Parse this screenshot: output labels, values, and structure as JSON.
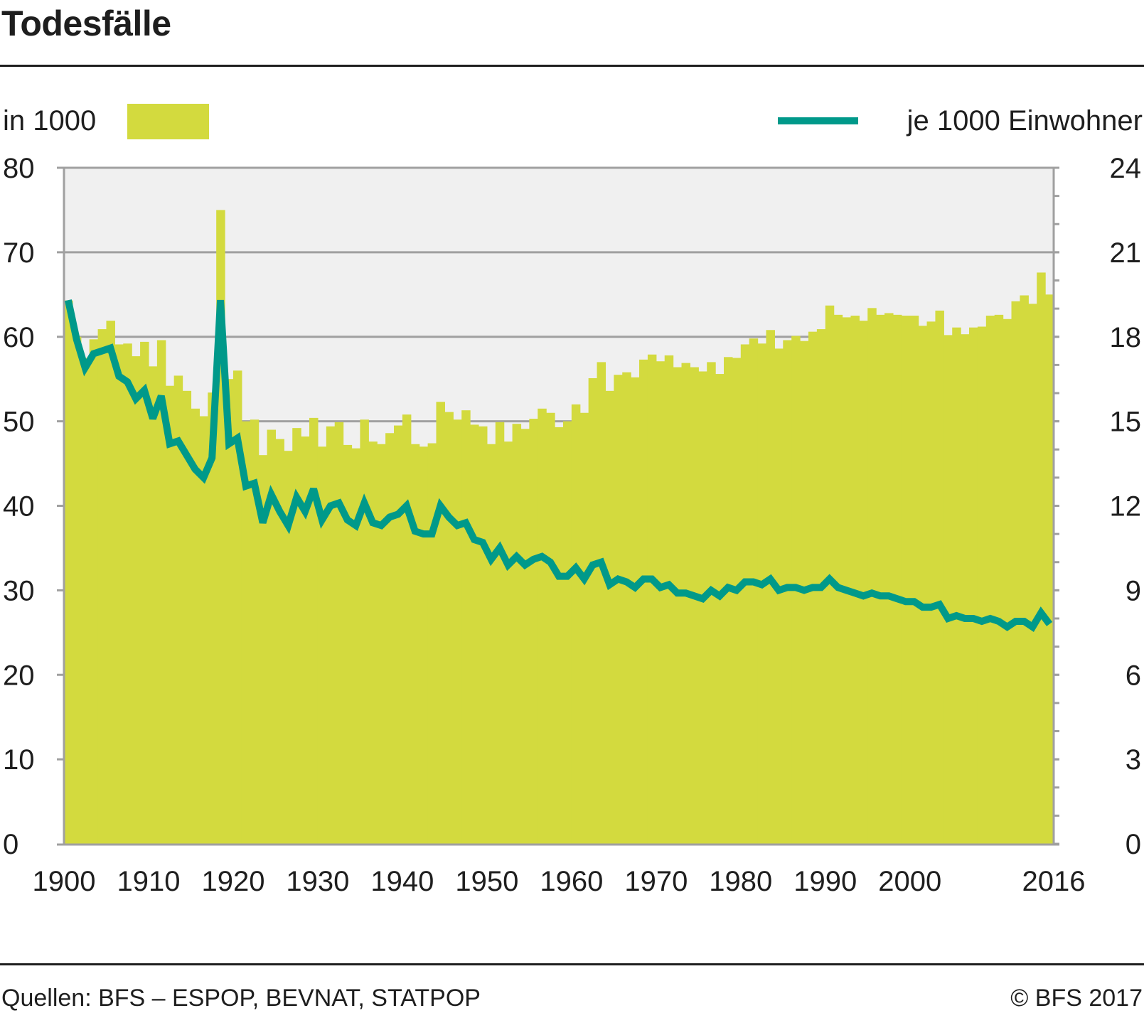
{
  "header": {
    "title": "Todesfälle"
  },
  "legend": {
    "left_label": "in 1000",
    "right_label": "je 1000 Einwohner"
  },
  "footer": {
    "source": "Quellen: BFS – ESPOP, BEVNAT, STATPOP",
    "copyright": "© BFS 2017"
  },
  "colors": {
    "bar": "#d3da3e",
    "line": "#00998a",
    "plot_bg": "#f0f0f0",
    "grid": "#a0a0a0",
    "text": "#1e1e1e"
  },
  "chart_data": {
    "type": "bar",
    "title": "Todesfälle",
    "xlabel": "",
    "x_tick_labels": [
      "1900",
      "1910",
      "1920",
      "1930",
      "1940",
      "1950",
      "1960",
      "1970",
      "1980",
      "1990",
      "2000",
      "2016"
    ],
    "x_ticks": [
      1900,
      1910,
      1920,
      1930,
      1940,
      1950,
      1960,
      1970,
      1980,
      1990,
      2000,
      2016
    ],
    "xlim": [
      1900,
      2016
    ],
    "y_left": {
      "label": "in 1000",
      "ylim": [
        0,
        80
      ],
      "ticks": [
        0,
        10,
        20,
        30,
        40,
        50,
        60,
        70,
        80
      ]
    },
    "y_right": {
      "label": "je 1000 Einwohner",
      "ylim": [
        0,
        24
      ],
      "ticks": [
        0,
        3,
        6,
        9,
        12,
        15,
        18,
        21,
        24
      ]
    },
    "grid": true,
    "legend": "top",
    "x": [
      1900,
      1901,
      1902,
      1903,
      1904,
      1905,
      1906,
      1907,
      1908,
      1909,
      1910,
      1911,
      1912,
      1913,
      1914,
      1915,
      1916,
      1917,
      1918,
      1919,
      1920,
      1921,
      1922,
      1923,
      1924,
      1925,
      1926,
      1927,
      1928,
      1929,
      1930,
      1931,
      1932,
      1933,
      1934,
      1935,
      1936,
      1937,
      1938,
      1939,
      1940,
      1941,
      1942,
      1943,
      1944,
      1945,
      1946,
      1947,
      1948,
      1949,
      1950,
      1951,
      1952,
      1953,
      1954,
      1955,
      1956,
      1957,
      1958,
      1959,
      1960,
      1961,
      1962,
      1963,
      1964,
      1965,
      1966,
      1967,
      1968,
      1969,
      1970,
      1971,
      1972,
      1973,
      1974,
      1975,
      1976,
      1977,
      1978,
      1979,
      1980,
      1981,
      1982,
      1983,
      1984,
      1985,
      1986,
      1987,
      1988,
      1989,
      1990,
      1991,
      1992,
      1993,
      1994,
      1995,
      1996,
      1997,
      1998,
      1999,
      2000,
      2001,
      2002,
      2003,
      2004,
      2005,
      2006,
      2007,
      2008,
      2009,
      2010,
      2011,
      2012,
      2013,
      2014,
      2015,
      2016
    ],
    "series": [
      {
        "name": "in 1000",
        "type": "bar",
        "axis": "left",
        "values": [
          64.3,
          60.0,
          57.5,
          59.7,
          60.9,
          61.9,
          59.1,
          59.2,
          57.7,
          59.4,
          56.5,
          59.6,
          54.2,
          55.4,
          53.6,
          51.5,
          50.6,
          53.4,
          75.0,
          55.0,
          56.0,
          50.0,
          50.2,
          46.0,
          49.0,
          47.9,
          46.5,
          49.2,
          48.2,
          50.4,
          47.0,
          49.4,
          49.9,
          47.2,
          46.8,
          50.2,
          47.6,
          47.3,
          48.6,
          49.5,
          50.8,
          47.3,
          47.0,
          47.4,
          52.3,
          51.1,
          50.2,
          51.3,
          49.6,
          49.4,
          47.3,
          49.9,
          47.6,
          49.7,
          49.1,
          50.3,
          51.5,
          51.0,
          49.3,
          50.0,
          52.0,
          51.0,
          55.1,
          57.0,
          53.6,
          55.5,
          55.8,
          55.2,
          57.3,
          57.9,
          57.1,
          57.8,
          56.4,
          56.9,
          56.4,
          55.9,
          57.0,
          55.6,
          57.6,
          57.5,
          59.1,
          59.8,
          59.2,
          60.8,
          58.6,
          59.6,
          60.1,
          59.5,
          60.6,
          60.9,
          63.7,
          62.6,
          62.3,
          62.5,
          61.9,
          63.4,
          62.6,
          62.8,
          62.6,
          62.5,
          62.5,
          61.3,
          61.8,
          63.1,
          60.2,
          61.1,
          60.3,
          61.1,
          61.2,
          62.5,
          62.6,
          62.1,
          64.2,
          64.9,
          63.9,
          67.6,
          65.0
        ]
      },
      {
        "name": "je 1000 Einwohner",
        "type": "line",
        "axis": "right",
        "values": [
          19.3,
          17.9,
          16.9,
          17.4,
          17.5,
          17.6,
          16.6,
          16.4,
          15.8,
          16.1,
          15.1,
          15.9,
          14.2,
          14.3,
          13.8,
          13.3,
          13.0,
          13.7,
          19.3,
          14.2,
          14.4,
          12.7,
          12.8,
          11.4,
          12.4,
          11.8,
          11.3,
          12.3,
          11.8,
          12.6,
          11.5,
          12.0,
          12.1,
          11.5,
          11.3,
          12.1,
          11.4,
          11.3,
          11.6,
          11.7,
          12.0,
          11.1,
          11.0,
          11.0,
          12.0,
          11.6,
          11.3,
          11.4,
          10.8,
          10.7,
          10.1,
          10.5,
          9.9,
          10.2,
          9.9,
          10.1,
          10.2,
          10.0,
          9.5,
          9.5,
          9.8,
          9.4,
          9.9,
          10.0,
          9.2,
          9.4,
          9.3,
          9.1,
          9.4,
          9.4,
          9.1,
          9.2,
          8.9,
          8.9,
          8.8,
          8.7,
          9.0,
          8.8,
          9.1,
          9.0,
          9.3,
          9.3,
          9.2,
          9.4,
          9.0,
          9.1,
          9.1,
          9.0,
          9.1,
          9.1,
          9.4,
          9.1,
          9.0,
          8.9,
          8.8,
          8.9,
          8.8,
          8.8,
          8.7,
          8.6,
          8.6,
          8.4,
          8.4,
          8.5,
          8.0,
          8.1,
          8.0,
          8.0,
          7.9,
          8.0,
          7.9,
          7.7,
          7.9,
          7.9,
          7.7,
          8.2,
          7.8
        ]
      }
    ]
  }
}
